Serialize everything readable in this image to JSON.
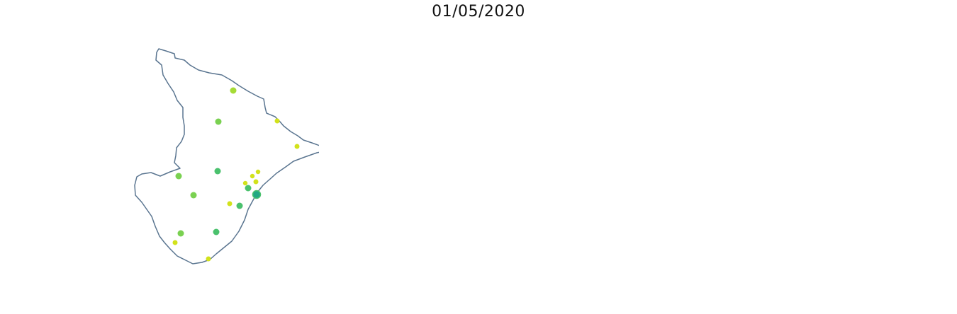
{
  "title": "01/05/2020",
  "colors": {
    "outline": "#5a7590",
    "yellow": "#fde725",
    "yellow_green": "#d2e21b",
    "lime": "#a5db36",
    "light_green": "#7ad151",
    "green": "#4ac16d",
    "teal_green": "#22a884",
    "teal": "#2a9d8f",
    "slate": "#577590",
    "highlight_red": "#f94144",
    "border_light": "#8fa6bb"
  },
  "panels": {
    "points_map": {
      "points": [
        {
          "color": "lime",
          "r": 4.5
        },
        {
          "color": "yellow_green",
          "r": 3.5
        },
        {
          "color": "light_green",
          "r": 4.5
        },
        {
          "color": "yellow_green",
          "r": 3.5
        },
        {
          "color": "light_green",
          "r": 4.5
        },
        {
          "color": "green",
          "r": 4.5
        },
        {
          "color": "light_green",
          "r": 4.5
        },
        {
          "color": "yellow_green",
          "r": 3.2
        },
        {
          "color": "yellow_green",
          "r": 3.2
        },
        {
          "color": "yellow_green",
          "r": 3.2
        },
        {
          "color": "yellow_green",
          "r": 3.5
        },
        {
          "color": "green",
          "r": 4.5
        },
        {
          "color": "teal_green",
          "r": 5.5
        },
        {
          "color": "yellow_green",
          "r": 3.5
        },
        {
          "color": "green",
          "r": 4.5
        },
        {
          "color": "light_green",
          "r": 4.5
        },
        {
          "color": "green",
          "r": 4.5
        },
        {
          "color": "yellow_green",
          "r": 3.5
        },
        {
          "color": "yellow_green",
          "r": 3.5
        }
      ]
    },
    "choropleth_map": {
      "regions": [
        {
          "color": "lime"
        },
        {
          "color": "light_green"
        },
        {
          "color": "light_green"
        },
        {
          "color": "green"
        },
        {
          "color": "light_green"
        },
        {
          "color": "light_green"
        },
        {
          "color": "light_green"
        },
        {
          "color": "green"
        },
        {
          "color": "teal_green"
        },
        {
          "color": "teal"
        },
        {
          "color": "light_green"
        },
        {
          "color": "yellow_green"
        },
        {
          "color": "yellow_green"
        },
        {
          "color": "yellow_green"
        },
        {
          "color": "lime"
        },
        {
          "color": "yellow_green"
        },
        {
          "color": "yellow_green"
        }
      ]
    },
    "highlight_map": {
      "regions": [
        {
          "color": "highlight_red"
        },
        {
          "color": "highlight_red"
        },
        {
          "color": "highlight_red"
        },
        {
          "color": "highlight_red"
        },
        {
          "color": "highlight_red"
        }
      ]
    }
  }
}
